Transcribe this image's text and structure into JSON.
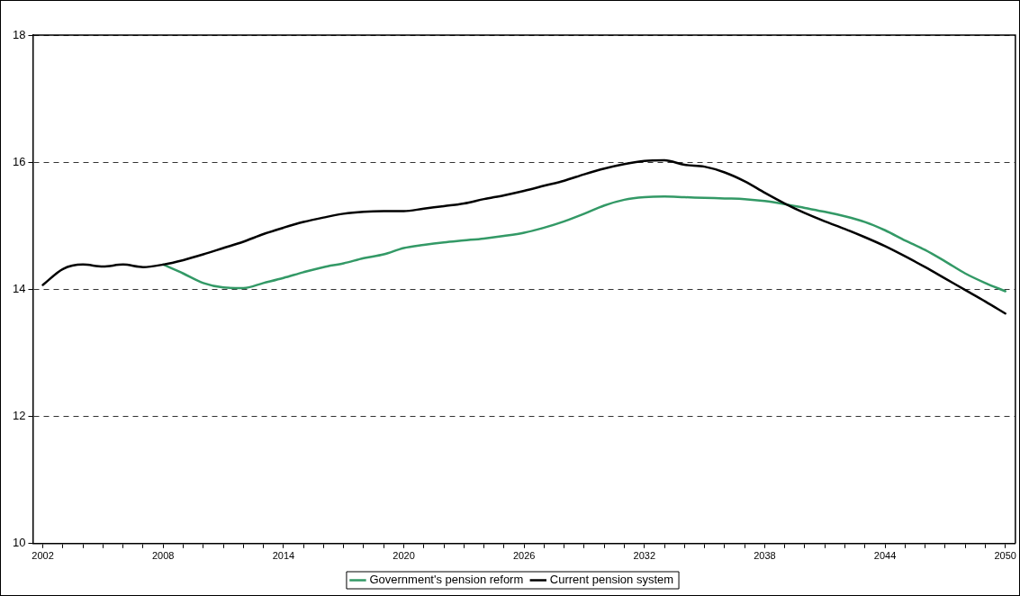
{
  "chart_data": {
    "type": "line",
    "x": [
      2002,
      2003,
      2004,
      2005,
      2006,
      2007,
      2008,
      2009,
      2010,
      2011,
      2012,
      2013,
      2014,
      2015,
      2016,
      2017,
      2018,
      2019,
      2020,
      2021,
      2022,
      2023,
      2024,
      2025,
      2026,
      2027,
      2028,
      2029,
      2030,
      2031,
      2032,
      2033,
      2034,
      2035,
      2036,
      2037,
      2038,
      2039,
      2040,
      2041,
      2042,
      2043,
      2044,
      2045,
      2046,
      2047,
      2048,
      2049,
      2050
    ],
    "series": [
      {
        "name": "Government's pension reform",
        "color": "#339966",
        "values": [
          null,
          null,
          null,
          null,
          null,
          null,
          14.39,
          14.25,
          14.1,
          14.03,
          14.02,
          14.1,
          14.18,
          14.27,
          14.35,
          14.41,
          14.49,
          14.55,
          14.65,
          14.7,
          14.74,
          14.77,
          14.8,
          14.84,
          14.89,
          14.97,
          15.07,
          15.19,
          15.32,
          15.41,
          15.45,
          15.46,
          15.45,
          15.44,
          15.43,
          15.42,
          15.39,
          15.34,
          15.28,
          15.22,
          15.15,
          15.06,
          14.93,
          14.77,
          14.62,
          14.44,
          14.25,
          14.1,
          13.97
        ]
      },
      {
        "name": "Current pension system",
        "color": "#000000",
        "values": [
          14.07,
          14.32,
          14.39,
          14.36,
          14.39,
          14.35,
          14.39,
          14.46,
          14.55,
          14.65,
          14.75,
          14.87,
          14.97,
          15.06,
          15.13,
          15.19,
          15.22,
          15.23,
          15.23,
          15.27,
          15.31,
          15.35,
          15.42,
          15.48,
          15.55,
          15.63,
          15.71,
          15.81,
          15.9,
          15.97,
          16.02,
          16.03,
          15.96,
          15.93,
          15.84,
          15.7,
          15.52,
          15.35,
          15.2,
          15.07,
          14.95,
          14.82,
          14.68,
          14.52,
          14.35,
          14.17,
          13.99,
          13.81,
          13.62
        ]
      }
    ],
    "xlim": [
      2001.5,
      2050.5
    ],
    "xticks": [
      2002,
      {
        "value": 2003,
        "label": null
      },
      {
        "value": 2004,
        "label": null
      },
      {
        "value": 2005,
        "label": null
      },
      {
        "value": 2006,
        "label": null
      },
      {
        "value": 2007,
        "label": null
      },
      2008,
      {
        "value": 2009,
        "label": null
      },
      {
        "value": 2010,
        "label": null
      },
      {
        "value": 2011,
        "label": null
      },
      {
        "value": 2012,
        "label": null
      },
      {
        "value": 2013,
        "label": null
      },
      2014,
      {
        "value": 2015,
        "label": null
      },
      {
        "value": 2016,
        "label": null
      },
      {
        "value": 2017,
        "label": null
      },
      {
        "value": 2018,
        "label": null
      },
      {
        "value": 2019,
        "label": null
      },
      2020,
      {
        "value": 2021,
        "label": null
      },
      {
        "value": 2022,
        "label": null
      },
      {
        "value": 2023,
        "label": null
      },
      {
        "value": 2024,
        "label": null
      },
      {
        "value": 2025,
        "label": null
      },
      2026,
      {
        "value": 2027,
        "label": null
      },
      {
        "value": 2028,
        "label": null
      },
      {
        "value": 2029,
        "label": null
      },
      {
        "value": 2030,
        "label": null
      },
      {
        "value": 2031,
        "label": null
      },
      2032,
      {
        "value": 2033,
        "label": null
      },
      {
        "value": 2034,
        "label": null
      },
      {
        "value": 2035,
        "label": null
      },
      {
        "value": 2036,
        "label": null
      },
      {
        "value": 2037,
        "label": null
      },
      2038,
      {
        "value": 2039,
        "label": null
      },
      {
        "value": 2040,
        "label": null
      },
      {
        "value": 2041,
        "label": null
      },
      {
        "value": 2042,
        "label": null
      },
      {
        "value": 2043,
        "label": null
      },
      2044,
      {
        "value": 2045,
        "label": null
      },
      {
        "value": 2046,
        "label": null
      },
      {
        "value": 2047,
        "label": null
      },
      {
        "value": 2048,
        "label": null
      },
      {
        "value": 2049,
        "label": null
      },
      2050
    ],
    "ylim": [
      10,
      18
    ],
    "yticks": [
      10,
      12,
      14,
      16,
      18
    ],
    "grid": "y",
    "line_style": "solid",
    "marker": "none",
    "legend": "bottom"
  }
}
